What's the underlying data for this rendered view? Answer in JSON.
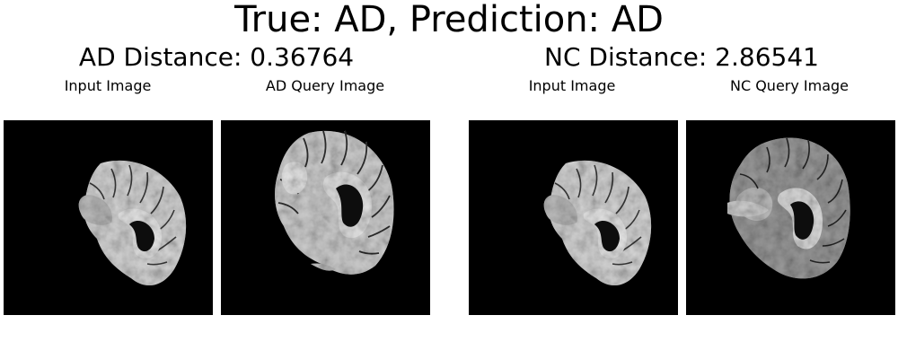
{
  "title": "True: AD, Prediction: AD",
  "groups": [
    {
      "title": "AD Distance: 0.36764",
      "panels": [
        {
          "label": "Input Image",
          "image": "brain-mri-sagittal-input"
        },
        {
          "label": "AD Query Image",
          "image": "brain-mri-sagittal-ad-query"
        }
      ]
    },
    {
      "title": "NC Distance: 2.86541",
      "panels": [
        {
          "label": "Input Image",
          "image": "brain-mri-sagittal-input"
        },
        {
          "label": "NC Query Image",
          "image": "brain-mri-sagittal-nc-query"
        }
      ]
    }
  ],
  "colors": {
    "panel_background": "#000000",
    "tissue_light": "#d8d8d8",
    "tissue_dark": "#5a5a5a"
  }
}
